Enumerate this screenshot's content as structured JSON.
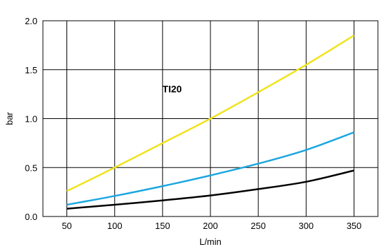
{
  "chart_data": {
    "type": "line",
    "title": "",
    "xlabel": "L/min",
    "ylabel": "bar",
    "xlim": [
      25,
      375
    ],
    "ylim": [
      0,
      2.0
    ],
    "x_ticks": [
      50,
      100,
      150,
      200,
      250,
      300,
      350
    ],
    "y_ticks": [
      "0.0",
      "0.5",
      "1.0",
      "1.5",
      "2.0"
    ],
    "grid": true,
    "legend": "none",
    "annotations": [
      {
        "text": "TI20",
        "x": 160,
        "y": 1.27
      }
    ],
    "x": [
      50,
      100,
      150,
      200,
      250,
      300,
      350
    ],
    "series": [
      {
        "color": "#f0e31a",
        "values": [
          0.26,
          0.5,
          0.75,
          1.0,
          1.27,
          1.55,
          1.85
        ]
      },
      {
        "color": "#1ba6e0",
        "values": [
          0.12,
          0.21,
          0.31,
          0.42,
          0.54,
          0.68,
          0.86
        ]
      },
      {
        "color": "#000000",
        "values": [
          0.08,
          0.12,
          0.165,
          0.215,
          0.28,
          0.355,
          0.47
        ]
      }
    ]
  }
}
